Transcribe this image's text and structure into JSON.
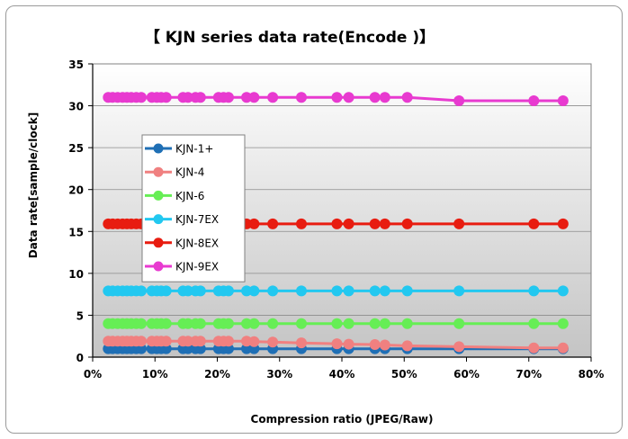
{
  "chart_data": {
    "type": "line",
    "title": "【 KJN series data rate(Encode )】",
    "xlabel": "Compression  ratio (JPEG/Raw)",
    "ylabel": "Data rate[sample/clock]",
    "xlim": [
      0,
      80
    ],
    "ylim": [
      0,
      35
    ],
    "x_ticks": [
      "0%",
      "10%",
      "20%",
      "30%",
      "40%",
      "50%",
      "60%",
      "70%",
      "80%"
    ],
    "y_ticks": [
      "0",
      "5",
      "10",
      "15",
      "20",
      "25",
      "30",
      "35"
    ],
    "grid": "horizontal",
    "legend_position": "upper-left inside plot",
    "x": [
      2.5,
      3.2,
      4,
      4.8,
      5.5,
      6.2,
      7,
      7.8,
      9.5,
      10.3,
      11,
      11.8,
      14.5,
      15.3,
      16.5,
      17.3,
      20.2,
      21,
      21.8,
      24.7,
      25.9,
      28.9,
      33.5,
      39.2,
      41.1,
      45.3,
      46.9,
      50.5,
      58.8,
      70.8,
      75.5
    ],
    "series": [
      {
        "name": "KJN-1+",
        "color": "#1f6fb5",
        "values": [
          1,
          1,
          1,
          1,
          1,
          1,
          1,
          1,
          1,
          1,
          1,
          1,
          1,
          1,
          1,
          1,
          1,
          1,
          1,
          1,
          1,
          1,
          1,
          1,
          1,
          1,
          1,
          1,
          1,
          1,
          1
        ]
      },
      {
        "name": "KJN-4",
        "color": "#f08080",
        "values": [
          1.9,
          1.9,
          1.9,
          1.9,
          1.9,
          1.9,
          1.9,
          1.9,
          1.9,
          1.9,
          1.9,
          1.9,
          1.9,
          1.9,
          1.9,
          1.9,
          1.9,
          1.9,
          1.9,
          1.9,
          1.85,
          1.8,
          1.7,
          1.6,
          1.55,
          1.5,
          1.45,
          1.35,
          1.25,
          1.1,
          1.1
        ]
      },
      {
        "name": "KJN-6",
        "color": "#66ee55",
        "values": [
          4,
          4,
          4,
          4,
          4,
          4,
          4,
          4,
          4,
          4,
          4,
          4,
          4,
          4,
          4,
          4,
          4,
          4,
          4,
          4,
          4,
          4,
          4,
          4,
          4,
          4,
          4,
          4,
          4,
          4,
          4
        ]
      },
      {
        "name": "KJN-7EX",
        "color": "#22c8f0",
        "values": [
          7.9,
          7.9,
          7.9,
          7.9,
          7.9,
          7.9,
          7.9,
          7.9,
          7.9,
          7.9,
          7.9,
          7.9,
          7.9,
          7.9,
          7.9,
          7.9,
          7.9,
          7.9,
          7.9,
          7.9,
          7.9,
          7.9,
          7.9,
          7.9,
          7.9,
          7.9,
          7.9,
          7.9,
          7.9,
          7.9,
          7.9
        ]
      },
      {
        "name": "KJN-8EX",
        "color": "#e81c10",
        "values": [
          15.9,
          15.9,
          15.9,
          15.9,
          15.9,
          15.9,
          15.9,
          15.9,
          15.9,
          15.9,
          15.9,
          15.9,
          15.9,
          15.9,
          15.9,
          15.9,
          15.9,
          15.9,
          15.9,
          15.9,
          15.9,
          15.9,
          15.9,
          15.9,
          15.9,
          15.9,
          15.9,
          15.9,
          15.9,
          15.9,
          15.9
        ]
      },
      {
        "name": "KJN-9EX",
        "color": "#e83ad0",
        "values": [
          31,
          31,
          31,
          31,
          31,
          31,
          31,
          31,
          31,
          31,
          31,
          31,
          31,
          31,
          31,
          31,
          31,
          31,
          31,
          31,
          31,
          31,
          31,
          31,
          31,
          31,
          31,
          31,
          30.6,
          30.6,
          30.6
        ]
      }
    ]
  }
}
